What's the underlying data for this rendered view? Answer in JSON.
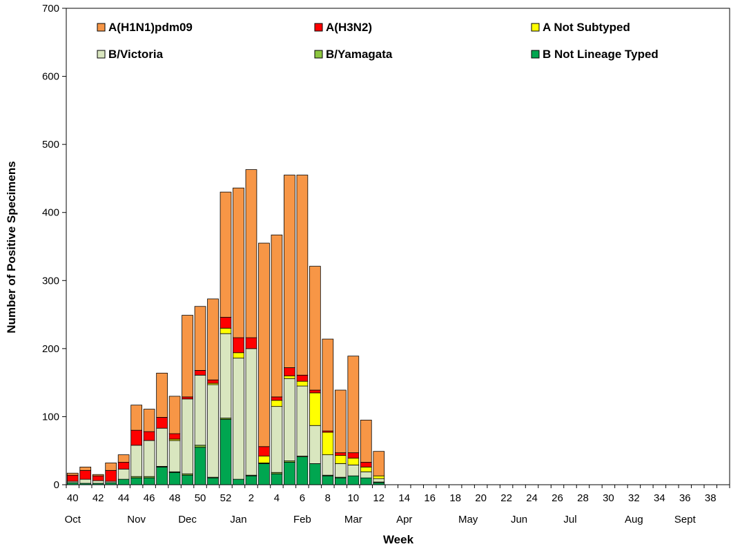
{
  "chart_data": {
    "type": "bar",
    "stacked": true,
    "title": "",
    "xlabel": "Week",
    "ylabel": "Number of Positive Specimens",
    "ylim": [
      0,
      700
    ],
    "yticks": [
      0,
      100,
      200,
      300,
      400,
      500,
      600,
      700
    ],
    "weeks": [
      "40",
      "41",
      "42",
      "43",
      "44",
      "45",
      "46",
      "47",
      "48",
      "49",
      "50",
      "51",
      "52",
      "1",
      "2",
      "3",
      "4",
      "5",
      "6",
      "7",
      "8",
      "9",
      "10",
      "11",
      "12",
      "13",
      "14",
      "15",
      "16",
      "17",
      "18",
      "19",
      "20",
      "21",
      "22",
      "23",
      "24",
      "25",
      "26",
      "27",
      "28",
      "29",
      "30",
      "31",
      "32",
      "33",
      "34",
      "35",
      "36",
      "37",
      "38",
      "39"
    ],
    "xtick_labels": [
      "40",
      "42",
      "44",
      "46",
      "48",
      "50",
      "52",
      "2",
      "4",
      "6",
      "8",
      "10",
      "12",
      "14",
      "16",
      "18",
      "20",
      "22",
      "24",
      "26",
      "28",
      "30",
      "32",
      "34",
      "36",
      "38"
    ],
    "month_labels": [
      "Oct",
      "Nov",
      "Dec",
      "Jan",
      "Feb",
      "Mar",
      "Apr",
      "May",
      "Jun",
      "Jul",
      "Aug",
      "Sept"
    ],
    "legend_position": "top",
    "series": [
      {
        "name": "B Not Lineage Typed",
        "color": "#00A650",
        "values": [
          3,
          2,
          2,
          3,
          8,
          10,
          10,
          26,
          18,
          14,
          55,
          10,
          96,
          8,
          13,
          31,
          16,
          33,
          41,
          31,
          13,
          10,
          13,
          10,
          3,
          0,
          0,
          0,
          0,
          0,
          0,
          0,
          0,
          0,
          0,
          0,
          0,
          0,
          0,
          0,
          0,
          0,
          0,
          0,
          0,
          0,
          0,
          0,
          0,
          0,
          0,
          0
        ]
      },
      {
        "name": "B/Yamagata",
        "color": "#8CC63F",
        "values": [
          0,
          0,
          0,
          0,
          0,
          2,
          2,
          1,
          1,
          2,
          3,
          1,
          2,
          0,
          1,
          1,
          2,
          2,
          1,
          0,
          1,
          1,
          0,
          0,
          1,
          0,
          0,
          0,
          0,
          0,
          0,
          0,
          0,
          0,
          0,
          0,
          0,
          0,
          0,
          0,
          0,
          0,
          0,
          0,
          0,
          0,
          0,
          0,
          0,
          0,
          0,
          0
        ]
      },
      {
        "name": "B/Victoria",
        "color": "#D9E6BF",
        "values": [
          2,
          6,
          4,
          2,
          15,
          46,
          53,
          56,
          46,
          110,
          103,
          136,
          124,
          178,
          186,
          0,
          97,
          121,
          103,
          56,
          30,
          20,
          16,
          9,
          5,
          0,
          0,
          0,
          0,
          0,
          0,
          0,
          0,
          0,
          0,
          0,
          0,
          0,
          0,
          0,
          0,
          0,
          0,
          0,
          0,
          0,
          0,
          0,
          0,
          0,
          0,
          0
        ]
      },
      {
        "name": "A Not Subtyped",
        "color": "#FFFF00",
        "values": [
          0,
          0,
          0,
          0,
          0,
          0,
          0,
          0,
          2,
          0,
          0,
          2,
          8,
          8,
          0,
          10,
          9,
          4,
          7,
          48,
          33,
          12,
          10,
          7,
          4,
          0,
          0,
          0,
          0,
          0,
          0,
          0,
          0,
          0,
          0,
          0,
          0,
          0,
          0,
          0,
          0,
          0,
          0,
          0,
          0,
          0,
          0,
          0,
          0,
          0,
          0,
          0
        ]
      },
      {
        "name": "A(H3N2)",
        "color": "#FF0000",
        "values": [
          9,
          13,
          7,
          16,
          10,
          22,
          13,
          16,
          8,
          3,
          7,
          5,
          16,
          22,
          16,
          14,
          5,
          12,
          9,
          4,
          2,
          4,
          8,
          7,
          0,
          0,
          0,
          0,
          0,
          0,
          0,
          0,
          0,
          0,
          0,
          0,
          0,
          0,
          0,
          0,
          0,
          0,
          0,
          0,
          0,
          0,
          0,
          0,
          0,
          0,
          0,
          0
        ]
      },
      {
        "name": "A(H1N1)pdm09",
        "color": "#F79646",
        "values": [
          3,
          5,
          2,
          11,
          11,
          37,
          33,
          65,
          55,
          120,
          94,
          119,
          184,
          220,
          247,
          299,
          238,
          283,
          294,
          182,
          135,
          92,
          142,
          62,
          36,
          0,
          0,
          0,
          0,
          0,
          0,
          0,
          0,
          0,
          0,
          0,
          0,
          0,
          0,
          0,
          0,
          0,
          0,
          0,
          0,
          0,
          0,
          0,
          0,
          0,
          0,
          0
        ]
      }
    ],
    "legend_order": [
      "A(H1N1)pdm09",
      "A(H3N2)",
      "A Not Subtyped",
      "B/Victoria",
      "B/Yamagata",
      "B Not Lineage Typed"
    ]
  }
}
